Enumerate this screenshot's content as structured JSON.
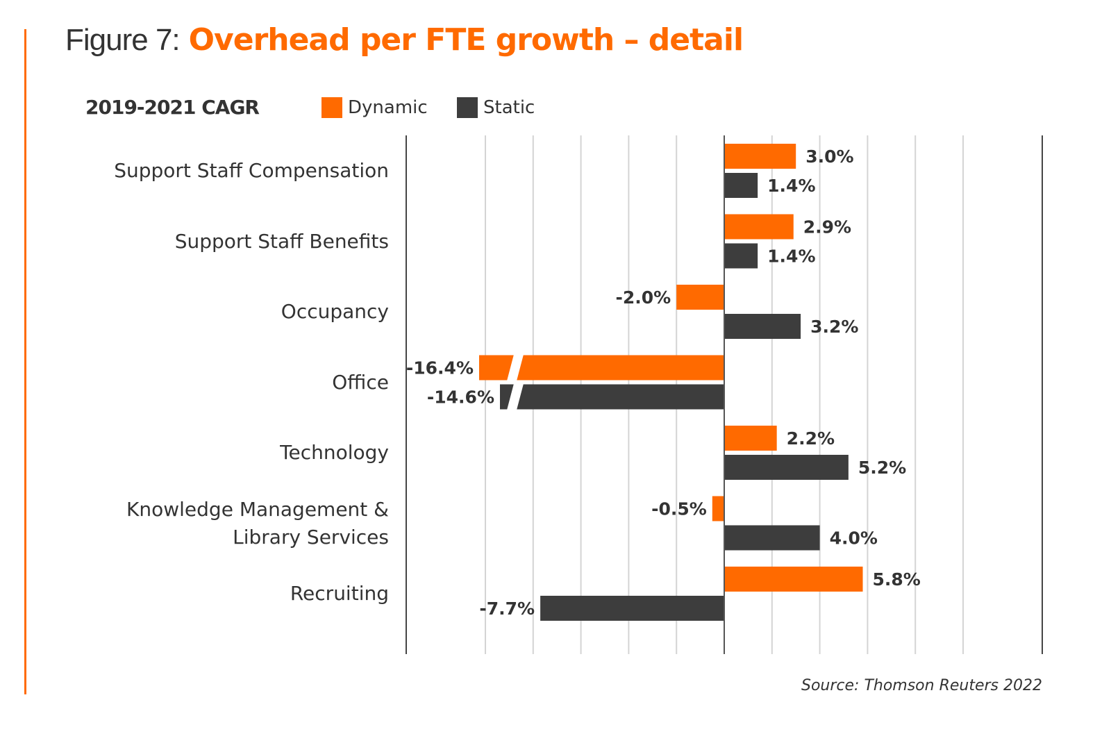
{
  "title": {
    "prefix": "Figure 7:",
    "main": "Overhead per FTE growth – detail"
  },
  "subtitle": "2019-2021 CAGR",
  "legend": [
    {
      "name": "Dynamic",
      "color": "#ff6a00"
    },
    {
      "name": "Static",
      "color": "#3d3d3d"
    }
  ],
  "source": "Source: Thomson Reuters 2022",
  "chart_data": {
    "type": "bar",
    "orientation": "horizontal",
    "title": "Figure 7: Overhead per FTE growth – detail",
    "subtitle": "2019-2021 CAGR",
    "xlabel": "",
    "ylabel": "",
    "categories": [
      "Support Staff Compensation",
      "Support Staff Benefits",
      "Occupancy",
      "Office",
      "Technology",
      "Knowledge Management & Library Services",
      "Recruiting"
    ],
    "category_lines": [
      [
        "Support Staff Compensation"
      ],
      [
        "Support Staff Benefits"
      ],
      [
        "Occupancy"
      ],
      [
        "Office"
      ],
      [
        "Technology"
      ],
      [
        "Knowledge Management &",
        "Library Services"
      ],
      [
        "Recruiting"
      ]
    ],
    "series": [
      {
        "name": "Dynamic",
        "color": "#ff6a00",
        "values": [
          3.0,
          2.9,
          -2.0,
          -16.4,
          2.2,
          -0.5,
          5.8
        ],
        "labels": [
          "3.0%",
          "2.9%",
          "-2.0%",
          "-16.4%",
          "2.2%",
          "-0.5%",
          "5.8%"
        ]
      },
      {
        "name": "Static",
        "color": "#3d3d3d",
        "values": [
          1.4,
          1.4,
          3.2,
          -14.6,
          5.2,
          4.0,
          -7.7
        ],
        "labels": [
          "1.4%",
          "1.4%",
          "3.2%",
          "-14.6%",
          "5.2%",
          "4.0%",
          "-7.7%"
        ]
      }
    ],
    "xlim": [
      -13.3,
      13.3
    ],
    "gridlines": [
      -10,
      -8,
      -6,
      -4,
      -2,
      0,
      2,
      4,
      6,
      8,
      10
    ],
    "axis_break": {
      "categories": [
        "Office"
      ],
      "note": "bars truncated with break marks"
    },
    "grid": true,
    "legend_position": "top",
    "value_format": "percent"
  }
}
